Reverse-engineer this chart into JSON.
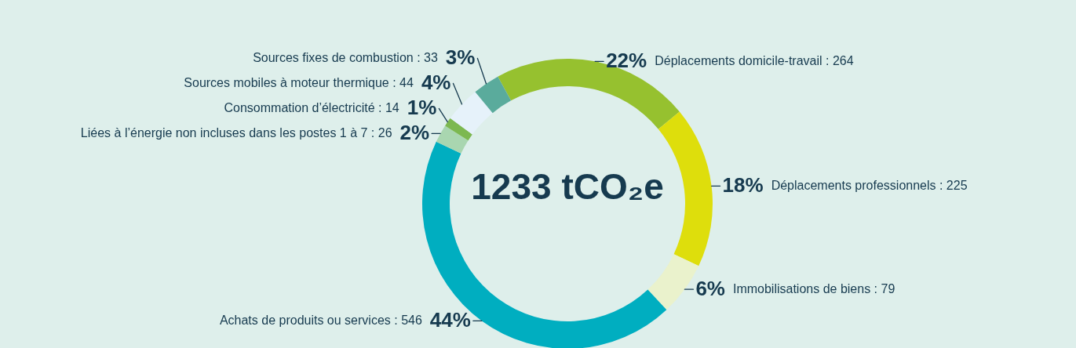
{
  "chart_data": {
    "type": "donut",
    "title": "1233 tCO₂e",
    "categories": [
      "Déplacements domicile-travail : 264",
      "Déplacements professionnels : 225",
      "Immobilisations de biens : 79",
      "Achats de produits ou services : 546",
      "Liées à l’énergie non incluses dans les postes 1 à 7 : 26",
      "Consommation d’électricité : 14",
      "Sources mobiles à moteur thermique : 44",
      "Sources fixes de combustion : 33"
    ],
    "values": [
      22,
      18,
      6,
      44,
      2,
      1,
      4,
      3
    ],
    "colors": [
      "#96c12f",
      "#dede0c",
      "#eaf2cc",
      "#00aec0",
      "#a9d6b0",
      "#7cb850",
      "#e6f2fa",
      "#5aab9c"
    ],
    "value_labels": [
      "22%",
      "18%",
      "6%",
      "44%",
      "2%",
      "1%",
      "4%",
      "3%"
    ]
  }
}
